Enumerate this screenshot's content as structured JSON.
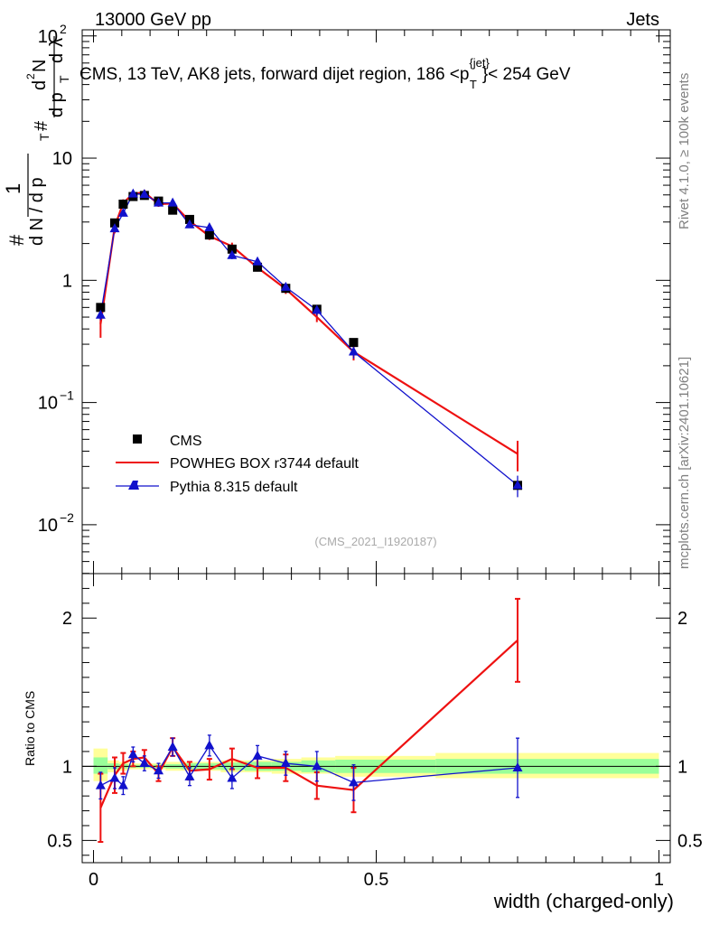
{
  "header": {
    "left": "13000 GeV pp",
    "right": "Jets"
  },
  "chart_data": {
    "type": "line",
    "title": "CMS, 13 TeV, AK8 jets, forward dijet region, 186 <p",
    "title_sup": "{jet}",
    "title_sub": "T",
    "title_end": "}< 254 GeV",
    "xlabel": "width (charged-only)",
    "ylabel": "1 / dN/dpT · d²N / dpT dλ",
    "ylabel_parts": [
      "#",
      "1",
      "d N / d p",
      "T",
      "#",
      "d p",
      "T",
      "d",
      "N",
      "d",
      "λ",
      "2"
    ],
    "ratio_ylabel": "Ratio to CMS",
    "xlim": [
      -0.02,
      1.02
    ],
    "main_ylim_log10": [
      -2.4,
      2.05
    ],
    "ratio_ylim": [
      0.35,
      2.3
    ],
    "x_ticks": [
      {
        "v": 0,
        "label": "0"
      },
      {
        "v": 0.5,
        "label": "0.5"
      },
      {
        "v": 1,
        "label": "1"
      }
    ],
    "main_y_ticks": [
      {
        "v": -2,
        "base": "10",
        "exp": "−2"
      },
      {
        "v": -1,
        "base": "10",
        "exp": "−1"
      },
      {
        "v": 0,
        "base": "1",
        "exp": ""
      },
      {
        "v": 1,
        "base": "10",
        "exp": ""
      },
      {
        "v": 2,
        "base": "10",
        "exp": "2"
      }
    ],
    "ratio_y_ticks": [
      {
        "v": 0.5,
        "label": "0.5"
      },
      {
        "v": 1,
        "label": "1"
      },
      {
        "v": 2,
        "label": "2"
      }
    ],
    "legend": [
      "CMS",
      "POWHEG BOX r3744 default",
      "Pythia 8.315 default"
    ],
    "watermark": "(CMS_2021_I1920187)",
    "side_top": "Rivet 4.1.0, ≥ 100k events",
    "side_bottom": "mcplots.cern.ch [arXiv:2401.10621]",
    "colors": {
      "cms": "#000000",
      "powheg": "#ee1111",
      "pythia": "#1111cc",
      "band_outer": "#ffff99",
      "band_inner": "#99ff99"
    },
    "x": [
      0.0125,
      0.0375,
      0.0525,
      0.07,
      0.09,
      0.115,
      0.14,
      0.17,
      0.205,
      0.245,
      0.29,
      0.34,
      0.395,
      0.46,
      0.75
    ],
    "series": [
      {
        "name": "CMS",
        "values": [
          0.6,
          2.95,
          4.2,
          4.85,
          4.95,
          4.45,
          3.75,
          3.15,
          2.35,
          1.8,
          1.28,
          0.86,
          0.58,
          0.31,
          0.021
        ],
        "band_outer_lo": [
          0.9,
          0.96,
          0.97,
          0.98,
          0.98,
          0.98,
          0.97,
          0.97,
          0.97,
          0.96,
          0.96,
          0.95,
          0.95,
          0.93,
          0.92
        ],
        "band_outer_hi": [
          1.12,
          1.04,
          1.03,
          1.02,
          1.02,
          1.02,
          1.03,
          1.03,
          1.03,
          1.04,
          1.04,
          1.05,
          1.06,
          1.07,
          1.09
        ],
        "band_inner_lo": [
          0.95,
          0.98,
          0.985,
          0.99,
          0.99,
          0.99,
          0.985,
          0.98,
          0.98,
          0.975,
          0.97,
          0.97,
          0.96,
          0.955,
          0.95
        ],
        "band_inner_hi": [
          1.06,
          1.02,
          1.015,
          1.01,
          1.01,
          1.01,
          1.015,
          1.02,
          1.02,
          1.025,
          1.03,
          1.03,
          1.04,
          1.045,
          1.05
        ]
      },
      {
        "name": "POWHEG BOX r3744 default",
        "values": [
          0.44,
          2.75,
          4.3,
          5.1,
          5.25,
          4.2,
          4.25,
          3.05,
          2.3,
          1.9,
          1.27,
          0.85,
          0.5,
          0.26,
          0.038
        ],
        "ratio": [
          0.72,
          0.94,
          1.02,
          1.05,
          1.06,
          0.95,
          1.13,
          0.97,
          0.98,
          1.05,
          0.99,
          0.99,
          0.87,
          0.84,
          1.85
        ],
        "ratio_err": [
          0.23,
          0.12,
          0.07,
          0.05,
          0.05,
          0.05,
          0.06,
          0.06,
          0.07,
          0.07,
          0.07,
          0.09,
          0.09,
          0.15,
          0.28
        ]
      },
      {
        "name": "Pythia 8.315 default",
        "values": [
          0.52,
          2.65,
          3.55,
          5.1,
          5.05,
          4.3,
          4.3,
          2.85,
          2.7,
          1.6,
          1.42,
          0.88,
          0.57,
          0.26,
          0.021
        ],
        "ratio": [
          0.87,
          0.92,
          0.87,
          1.08,
          1.02,
          0.97,
          1.13,
          0.93,
          1.14,
          0.92,
          1.07,
          1.02,
          1.0,
          0.89,
          0.99
        ],
        "ratio_err": [
          0.09,
          0.07,
          0.06,
          0.05,
          0.05,
          0.05,
          0.06,
          0.06,
          0.07,
          0.07,
          0.07,
          0.08,
          0.1,
          0.12,
          0.2
        ]
      }
    ]
  }
}
